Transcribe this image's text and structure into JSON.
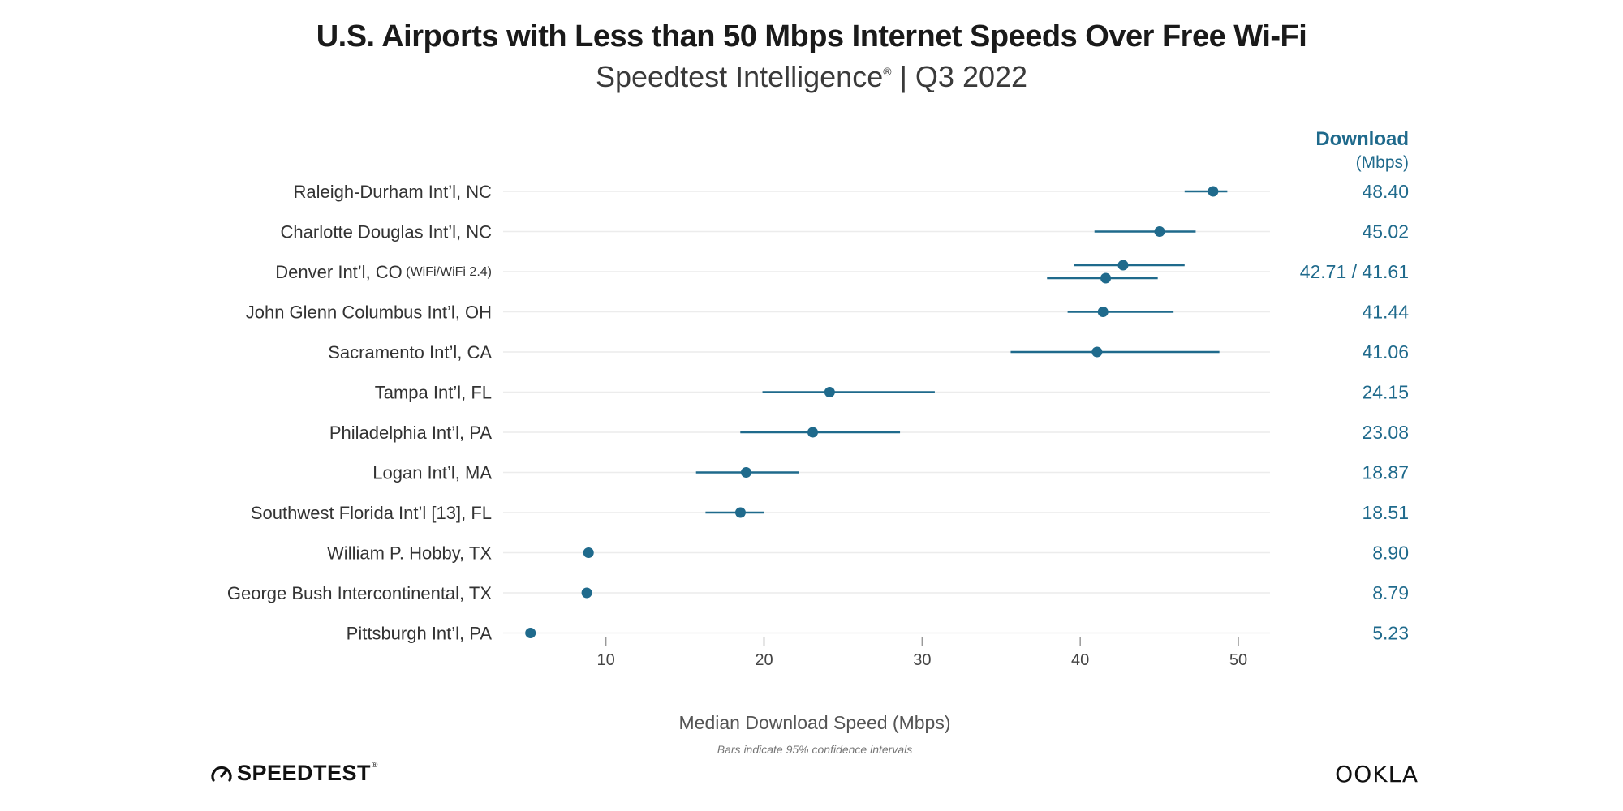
{
  "chart_data": {
    "type": "dot-errorbar",
    "title": "U.S. Airports with Less than 50 Mbps Internet Speeds Over Free Wi-Fi",
    "subtitle": "Speedtest Intelligence",
    "subtitle_mark": "®",
    "subtitle_suffix": " | Q3 2022",
    "column_header": "Download",
    "column_unit": "(Mbps)",
    "xlabel": "Median Download Speed (Mbps)",
    "note": "Bars indicate 95% confidence intervals",
    "xlim": [
      3.5,
      52
    ],
    "xticks": [
      10,
      20,
      30,
      40,
      50
    ],
    "color": "#1f6a8c",
    "rows": [
      {
        "label": "Raleigh-Durham Int’l, NC",
        "value_text": "48.40",
        "points": [
          {
            "value": 48.4,
            "ci": [
              46.6,
              49.3
            ]
          }
        ]
      },
      {
        "label": "Charlotte Douglas Int’l, NC",
        "value_text": "45.02",
        "points": [
          {
            "value": 45.02,
            "ci": [
              40.9,
              47.3
            ]
          }
        ]
      },
      {
        "label": "Denver Int’l, CO",
        "label_suffix": "(WiFi/WiFi 2.4)",
        "value_text": "42.71 / 41.61",
        "points": [
          {
            "value": 42.71,
            "ci": [
              39.6,
              46.6
            ]
          },
          {
            "value": 41.61,
            "ci": [
              37.9,
              44.9
            ]
          }
        ]
      },
      {
        "label": "John Glenn Columbus Int’l, OH",
        "value_text": "41.44",
        "points": [
          {
            "value": 41.44,
            "ci": [
              39.2,
              45.9
            ]
          }
        ]
      },
      {
        "label": "Sacramento Int’l, CA",
        "value_text": "41.06",
        "points": [
          {
            "value": 41.06,
            "ci": [
              35.6,
              48.8
            ]
          }
        ]
      },
      {
        "label": "Tampa Int’l, FL",
        "value_text": "24.15",
        "points": [
          {
            "value": 24.15,
            "ci": [
              19.9,
              30.8
            ]
          }
        ]
      },
      {
        "label": "Philadelphia Int’l, PA",
        "value_text": "23.08",
        "points": [
          {
            "value": 23.08,
            "ci": [
              18.5,
              28.6
            ]
          }
        ]
      },
      {
        "label": "Logan Int’l, MA",
        "value_text": "18.87",
        "points": [
          {
            "value": 18.87,
            "ci": [
              15.7,
              22.2
            ]
          }
        ]
      },
      {
        "label": "Southwest Florida Int’l [13], FL",
        "value_text": "18.51",
        "points": [
          {
            "value": 18.51,
            "ci": [
              16.3,
              20.0
            ]
          }
        ]
      },
      {
        "label": "William P. Hobby, TX",
        "value_text": "8.90",
        "points": [
          {
            "value": 8.9,
            "ci": [
              8.7,
              9.1
            ]
          }
        ]
      },
      {
        "label": "George Bush Intercontinental, TX",
        "value_text": "8.79",
        "points": [
          {
            "value": 8.79,
            "ci": [
              8.6,
              9.0
            ]
          }
        ]
      },
      {
        "label": "Pittsburgh Int’l, PA",
        "value_text": "5.23",
        "points": [
          {
            "value": 5.23,
            "ci": [
              5.0,
              5.5
            ]
          }
        ]
      }
    ]
  },
  "footer": {
    "speedtest_logo": "SPEEDTEST",
    "speedtest_mark": "®",
    "ookla_logo": "OOKLA"
  }
}
